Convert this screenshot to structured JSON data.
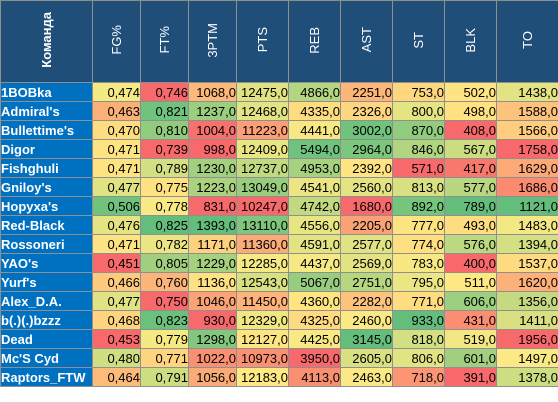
{
  "headers": {
    "team": "Команда",
    "cols": [
      "FG%",
      "FT%",
      "3PTM",
      "PTS",
      "REB",
      "AST",
      "ST",
      "BLK",
      "TO"
    ]
  },
  "rows": [
    {
      "team": "1BOBka",
      "cells": [
        {
          "v": "0,474",
          "c": "#f5e984"
        },
        {
          "v": "0,746",
          "c": "#f8696b"
        },
        {
          "v": "1068,0",
          "c": "#fcb979"
        },
        {
          "v": "12475,0",
          "c": "#e0e383"
        },
        {
          "v": "4866,0",
          "c": "#b5d680"
        },
        {
          "v": "2251,0",
          "c": "#fcb679"
        },
        {
          "v": "753,0",
          "c": "#fed680"
        },
        {
          "v": "502,0",
          "c": "#fee482"
        },
        {
          "v": "1438,0",
          "c": "#e3e383"
        }
      ]
    },
    {
      "team": "Admiral's",
      "cells": [
        {
          "v": "0,463",
          "c": "#fbb078"
        },
        {
          "v": "0,821",
          "c": "#6fc37c"
        },
        {
          "v": "1237,0",
          "c": "#9bce7f"
        },
        {
          "v": "12468,0",
          "c": "#e2e383"
        },
        {
          "v": "4335,0",
          "c": "#fedd81"
        },
        {
          "v": "2326,0",
          "c": "#fed580"
        },
        {
          "v": "800,0",
          "c": "#e5e483"
        },
        {
          "v": "498,0",
          "c": "#fee281"
        },
        {
          "v": "1588,0",
          "c": "#fdc27c"
        }
      ]
    },
    {
      "team": "Bullettime's",
      "cells": [
        {
          "v": "0,470",
          "c": "#fedd81"
        },
        {
          "v": "0,810",
          "c": "#91cb7e"
        },
        {
          "v": "1004,0",
          "c": "#f8716c"
        },
        {
          "v": "11223,0",
          "c": "#fba076"
        },
        {
          "v": "4441,0",
          "c": "#f7e883"
        },
        {
          "v": "3002,0",
          "c": "#6fc37c"
        },
        {
          "v": "870,0",
          "c": "#91cb7e"
        },
        {
          "v": "408,0",
          "c": "#f8696b"
        },
        {
          "v": "1566,0",
          "c": "#fecd7e"
        }
      ]
    },
    {
      "team": "Digor",
      "cells": [
        {
          "v": "0,471",
          "c": "#fee382"
        },
        {
          "v": "0,739",
          "c": "#f8696b"
        },
        {
          "v": "998,0",
          "c": "#f8696b"
        },
        {
          "v": "12409,0",
          "c": "#e8e583"
        },
        {
          "v": "5494,0",
          "c": "#6fc37c"
        },
        {
          "v": "2964,0",
          "c": "#7dc67d"
        },
        {
          "v": "846,0",
          "c": "#b0d480"
        },
        {
          "v": "567,0",
          "c": "#ccdc81"
        },
        {
          "v": "1758,0",
          "c": "#f8696b"
        }
      ]
    },
    {
      "team": "Fishghuli",
      "cells": [
        {
          "v": "0,471",
          "c": "#fee382"
        },
        {
          "v": "0,789",
          "c": "#d3df82"
        },
        {
          "v": "1230,0",
          "c": "#a3d07f"
        },
        {
          "v": "12737,0",
          "c": "#c2d981"
        },
        {
          "v": "4953,0",
          "c": "#a6d17f"
        },
        {
          "v": "2392,0",
          "c": "#fee482"
        },
        {
          "v": "571,0",
          "c": "#f8696b"
        },
        {
          "v": "417,0",
          "c": "#f9786e"
        },
        {
          "v": "1629,0",
          "c": "#fca877"
        }
      ]
    },
    {
      "team": "Gniloy's",
      "cells": [
        {
          "v": "0,477",
          "c": "#e0e383"
        },
        {
          "v": "0,775",
          "c": "#fee181"
        },
        {
          "v": "1223,0",
          "c": "#abd27f"
        },
        {
          "v": "13049,0",
          "c": "#98cd7e"
        },
        {
          "v": "4541,0",
          "c": "#ebe683"
        },
        {
          "v": "2560,0",
          "c": "#e5e483"
        },
        {
          "v": "813,0",
          "c": "#d8e082"
        },
        {
          "v": "577,0",
          "c": "#b9d780"
        },
        {
          "v": "1686,0",
          "c": "#fa8b71"
        }
      ]
    },
    {
      "team": "Hopyxa's",
      "cells": [
        {
          "v": "0,506",
          "c": "#6fc37c"
        },
        {
          "v": "0,778",
          "c": "#f8e984"
        },
        {
          "v": "831,0",
          "c": "#f8696b"
        },
        {
          "v": "10247,0",
          "c": "#f8696b"
        },
        {
          "v": "4742,0",
          "c": "#c2d981"
        },
        {
          "v": "1680,0",
          "c": "#f8696b"
        },
        {
          "v": "892,0",
          "c": "#76c57c"
        },
        {
          "v": "789,0",
          "c": "#63be7b"
        },
        {
          "v": "1121,0",
          "c": "#63be7b"
        }
      ]
    },
    {
      "team": "Red-Black",
      "cells": [
        {
          "v": "0,476",
          "c": "#e5e483"
        },
        {
          "v": "0,825",
          "c": "#63be7b"
        },
        {
          "v": "1393,0",
          "c": "#63be7b"
        },
        {
          "v": "13110,0",
          "c": "#7fc67d"
        },
        {
          "v": "4556,0",
          "c": "#e8e583"
        },
        {
          "v": "2205,0",
          "c": "#fba176"
        },
        {
          "v": "777,0",
          "c": "#fee481"
        },
        {
          "v": "493,0",
          "c": "#fedd81"
        },
        {
          "v": "1483,0",
          "c": "#f4e884"
        }
      ]
    },
    {
      "team": "Rossoneri",
      "cells": [
        {
          "v": "0,471",
          "c": "#fee382"
        },
        {
          "v": "0,782",
          "c": "#ebe683"
        },
        {
          "v": "1171,0",
          "c": "#fdd27f"
        },
        {
          "v": "11360,0",
          "c": "#fbab77"
        },
        {
          "v": "4591,0",
          "c": "#e3e383"
        },
        {
          "v": "2577,0",
          "c": "#e0e383"
        },
        {
          "v": "774,0",
          "c": "#fedf81"
        },
        {
          "v": "576,0",
          "c": "#bcd881"
        },
        {
          "v": "1394,0",
          "c": "#d3df82"
        }
      ]
    },
    {
      "team": "YAO's",
      "cells": [
        {
          "v": "0,451",
          "c": "#f8696b"
        },
        {
          "v": "0,805",
          "c": "#a2cf7f"
        },
        {
          "v": "1229,0",
          "c": "#a6d17f"
        },
        {
          "v": "12285,0",
          "c": "#f5e984"
        },
        {
          "v": "4437,0",
          "c": "#f6e883"
        },
        {
          "v": "2569,0",
          "c": "#e3e383"
        },
        {
          "v": "783,0",
          "c": "#f7e883"
        },
        {
          "v": "400,0",
          "c": "#f8696b"
        },
        {
          "v": "1537,0",
          "c": "#feda80"
        }
      ]
    },
    {
      "team": "Yurf's",
      "cells": [
        {
          "v": "0,466",
          "c": "#fdc97d"
        },
        {
          "v": "0,760",
          "c": "#fcb479"
        },
        {
          "v": "1136,0",
          "c": "#fee181"
        },
        {
          "v": "12543,0",
          "c": "#d8e082"
        },
        {
          "v": "5067,0",
          "c": "#97cd7e"
        },
        {
          "v": "2751,0",
          "c": "#b7d680"
        },
        {
          "v": "795,0",
          "c": "#ebe683"
        },
        {
          "v": "511,0",
          "c": "#fee883"
        },
        {
          "v": "1620,0",
          "c": "#fdb179"
        }
      ]
    },
    {
      "team": "Alex_D.A.",
      "cells": [
        {
          "v": "0,477",
          "c": "#e0e383"
        },
        {
          "v": "0,750",
          "c": "#f8696b"
        },
        {
          "v": "1046,0",
          "c": "#fba276"
        },
        {
          "v": "11450,0",
          "c": "#fdb379"
        },
        {
          "v": "4360,0",
          "c": "#fee582"
        },
        {
          "v": "2282,0",
          "c": "#fdc37c"
        },
        {
          "v": "771,0",
          "c": "#fedd81"
        },
        {
          "v": "606,0",
          "c": "#9ccf7f"
        },
        {
          "v": "1356,0",
          "c": "#c4d981"
        }
      ]
    },
    {
      "team": "b(.)(.)bzzz",
      "cells": [
        {
          "v": "0,468",
          "c": "#fed47f"
        },
        {
          "v": "0,823",
          "c": "#6ac17c"
        },
        {
          "v": "930,0",
          "c": "#f8696b"
        },
        {
          "v": "12329,0",
          "c": "#f0e783"
        },
        {
          "v": "4325,0",
          "c": "#fedb81"
        },
        {
          "v": "2460,0",
          "c": "#fbe984"
        },
        {
          "v": "933,0",
          "c": "#63be7b"
        },
        {
          "v": "431,0",
          "c": "#fb8e72"
        },
        {
          "v": "1411,0",
          "c": "#d8e082"
        }
      ]
    },
    {
      "team": "Dead",
      "cells": [
        {
          "v": "0,453",
          "c": "#f8696b"
        },
        {
          "v": "0,779",
          "c": "#f5e984"
        },
        {
          "v": "1298,0",
          "c": "#82c77d"
        },
        {
          "v": "12127,0",
          "c": "#fee583"
        },
        {
          "v": "4425,0",
          "c": "#f9e984"
        },
        {
          "v": "3145,0",
          "c": "#63be7b"
        },
        {
          "v": "818,0",
          "c": "#d2df82"
        },
        {
          "v": "519,0",
          "c": "#f2e784"
        },
        {
          "v": "1956,0",
          "c": "#f8696b"
        }
      ]
    },
    {
      "team": "Mc'S Cyd",
      "cells": [
        {
          "v": "0,480",
          "c": "#d0de82"
        },
        {
          "v": "0,771",
          "c": "#fed47f"
        },
        {
          "v": "1022,0",
          "c": "#fa8f72"
        },
        {
          "v": "10973,0",
          "c": "#fa8f72"
        },
        {
          "v": "3950,0",
          "c": "#f8696b"
        },
        {
          "v": "2605,0",
          "c": "#d8e082"
        },
        {
          "v": "806,0",
          "c": "#e2e383"
        },
        {
          "v": "601,0",
          "c": "#a2cf7f"
        },
        {
          "v": "1497,0",
          "c": "#fbe984"
        }
      ]
    },
    {
      "team": "Raptors_FTW",
      "cells": [
        {
          "v": "0,464",
          "c": "#fcbb7a"
        },
        {
          "v": "0,791",
          "c": "#cddd82"
        },
        {
          "v": "1056,0",
          "c": "#fbab77"
        },
        {
          "v": "12183,0",
          "c": "#fee983"
        },
        {
          "v": "4113,0",
          "c": "#fa9072"
        },
        {
          "v": "2463,0",
          "c": "#fae984"
        },
        {
          "v": "718,0",
          "c": "#fb9573"
        },
        {
          "v": "391,0",
          "c": "#f8696b"
        },
        {
          "v": "1378,0",
          "c": "#cddd82"
        }
      ]
    }
  ]
}
